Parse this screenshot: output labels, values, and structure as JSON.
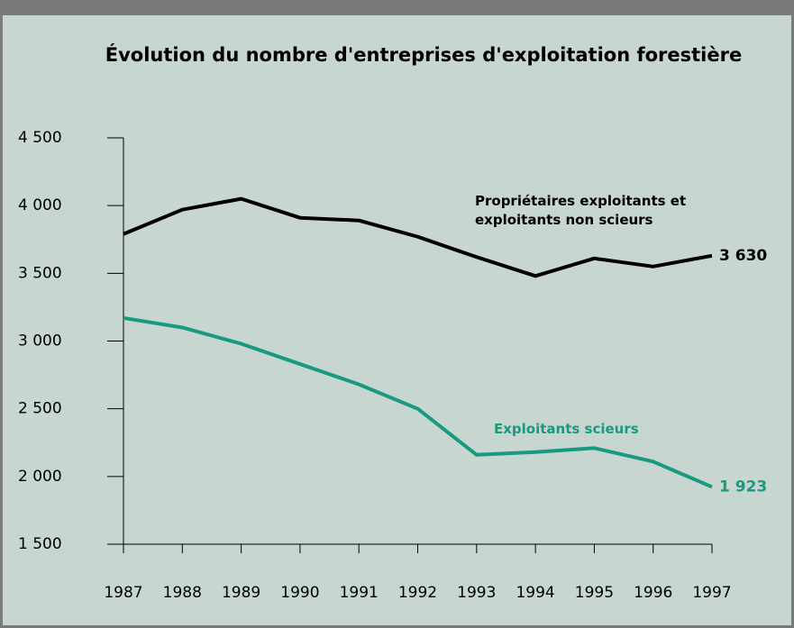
{
  "chart_data": {
    "type": "line",
    "title": "Évolution du nombre d'entreprises d'exploitation forestière",
    "categories": [
      "1987",
      "1988",
      "1989",
      "1990",
      "1991",
      "1992",
      "1993",
      "1994",
      "1995",
      "1996",
      "1997"
    ],
    "series": [
      {
        "name": "Propriétaires exploitants et exploitants non scieurs",
        "color": "#000000",
        "values": [
          3790,
          3970,
          4050,
          3910,
          3890,
          3770,
          3620,
          3480,
          3610,
          3550,
          3630
        ],
        "value_labels": [
          null,
          null,
          null,
          null,
          null,
          null,
          null,
          null,
          null,
          null,
          "3 630"
        ]
      },
      {
        "name": "Exploitants scieurs",
        "color": "#179a80",
        "values": [
          3170,
          3100,
          2980,
          2830,
          2680,
          2500,
          2160,
          2180,
          2210,
          2110,
          1923
        ],
        "value_labels": [
          null,
          null,
          null,
          null,
          null,
          null,
          null,
          null,
          null,
          null,
          "1 923"
        ]
      }
    ],
    "ylim": [
      1500,
      4500
    ],
    "yticks": [
      {
        "value": 1500,
        "label": "1 500"
      },
      {
        "value": 2000,
        "label": "2 000"
      },
      {
        "value": 2500,
        "label": "2 500"
      },
      {
        "value": 3000,
        "label": "3 000"
      },
      {
        "value": 3500,
        "label": "3 500"
      },
      {
        "value": 4000,
        "label": "4 000"
      },
      {
        "value": 4500,
        "label": "4 500"
      }
    ]
  }
}
